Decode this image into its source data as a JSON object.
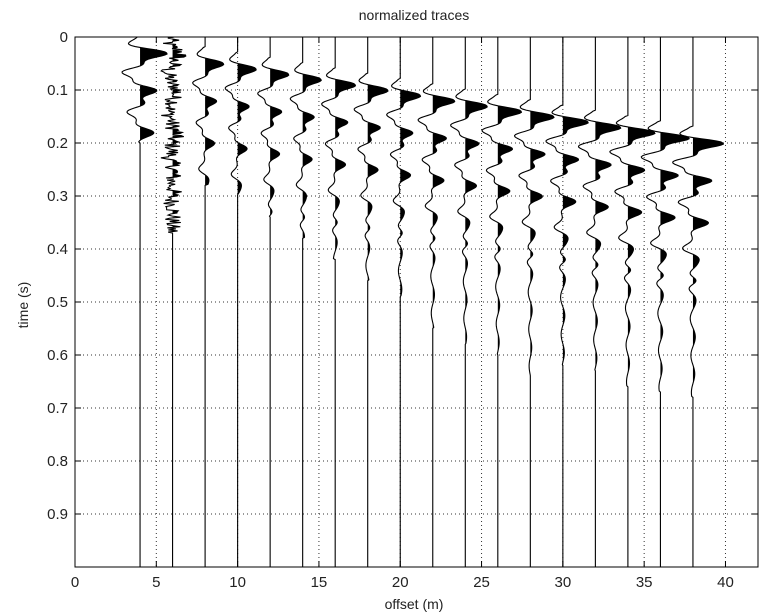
{
  "chart_data": {
    "type": "line",
    "title": "normalized traces",
    "xlabel": "offset (m)",
    "ylabel": "time (s)",
    "xlim": [
      0,
      42
    ],
    "ylim": [
      0,
      1
    ],
    "y_reversed": true,
    "grid": true,
    "grid_style": "dotted",
    "x_ticks": [
      0,
      5,
      10,
      15,
      20,
      25,
      30,
      35,
      40
    ],
    "y_ticks": [
      0,
      0.1,
      0.2,
      0.3,
      0.4,
      0.5,
      0.6,
      0.7,
      0.8,
      0.9
    ],
    "y_tick_labels": [
      "0",
      "0.1",
      "0.2",
      "0.3",
      "0.4",
      "0.5",
      "0.6",
      "0.7",
      "0.8",
      "0.9"
    ],
    "trace_offsets": [
      4,
      6,
      8,
      10,
      12,
      14,
      16,
      18,
      20,
      22,
      24,
      26,
      28,
      30,
      32,
      34,
      36,
      38
    ],
    "series": [
      {
        "offset": 4,
        "first_arrival": 0.03,
        "amplitude": 1.6,
        "noise": 0.0,
        "end": 0.2
      },
      {
        "offset": 6,
        "first_arrival": 0.03,
        "amplitude": 0.5,
        "noise": 0.55,
        "end": 0.37
      },
      {
        "offset": 8,
        "first_arrival": 0.05,
        "amplitude": 1.1,
        "noise": 0.0,
        "end": 0.28
      },
      {
        "offset": 10,
        "first_arrival": 0.06,
        "amplitude": 1.1,
        "noise": 0.0,
        "end": 0.3
      },
      {
        "offset": 12,
        "first_arrival": 0.07,
        "amplitude": 1.1,
        "noise": 0.0,
        "end": 0.34
      },
      {
        "offset": 14,
        "first_arrival": 0.08,
        "amplitude": 1.1,
        "noise": 0.0,
        "end": 0.38
      },
      {
        "offset": 16,
        "first_arrival": 0.09,
        "amplitude": 1.2,
        "noise": 0.0,
        "end": 0.42
      },
      {
        "offset": 18,
        "first_arrival": 0.1,
        "amplitude": 1.2,
        "noise": 0.0,
        "end": 0.46
      },
      {
        "offset": 20,
        "first_arrival": 0.11,
        "amplitude": 1.2,
        "noise": 0.0,
        "end": 0.49
      },
      {
        "offset": 22,
        "first_arrival": 0.12,
        "amplitude": 1.3,
        "noise": 0.0,
        "end": 0.55
      },
      {
        "offset": 24,
        "first_arrival": 0.13,
        "amplitude": 1.3,
        "noise": 0.0,
        "end": 0.58
      },
      {
        "offset": 26,
        "first_arrival": 0.14,
        "amplitude": 1.4,
        "noise": 0.0,
        "end": 0.6
      },
      {
        "offset": 28,
        "first_arrival": 0.15,
        "amplitude": 1.4,
        "noise": 0.0,
        "end": 0.64
      },
      {
        "offset": 30,
        "first_arrival": 0.16,
        "amplitude": 1.5,
        "noise": 0.0,
        "end": 0.62
      },
      {
        "offset": 32,
        "first_arrival": 0.17,
        "amplitude": 1.5,
        "noise": 0.0,
        "end": 0.63
      },
      {
        "offset": 34,
        "first_arrival": 0.18,
        "amplitude": 1.6,
        "noise": 0.0,
        "end": 0.66
      },
      {
        "offset": 36,
        "first_arrival": 0.19,
        "amplitude": 1.7,
        "noise": 0.0,
        "end": 0.67
      },
      {
        "offset": 38,
        "first_arrival": 0.2,
        "amplitude": 1.8,
        "noise": 0.0,
        "end": 0.68
      }
    ],
    "fill_positive": true,
    "trace_color": "#000000",
    "grid_color": "#333333",
    "background": "#ffffff"
  }
}
